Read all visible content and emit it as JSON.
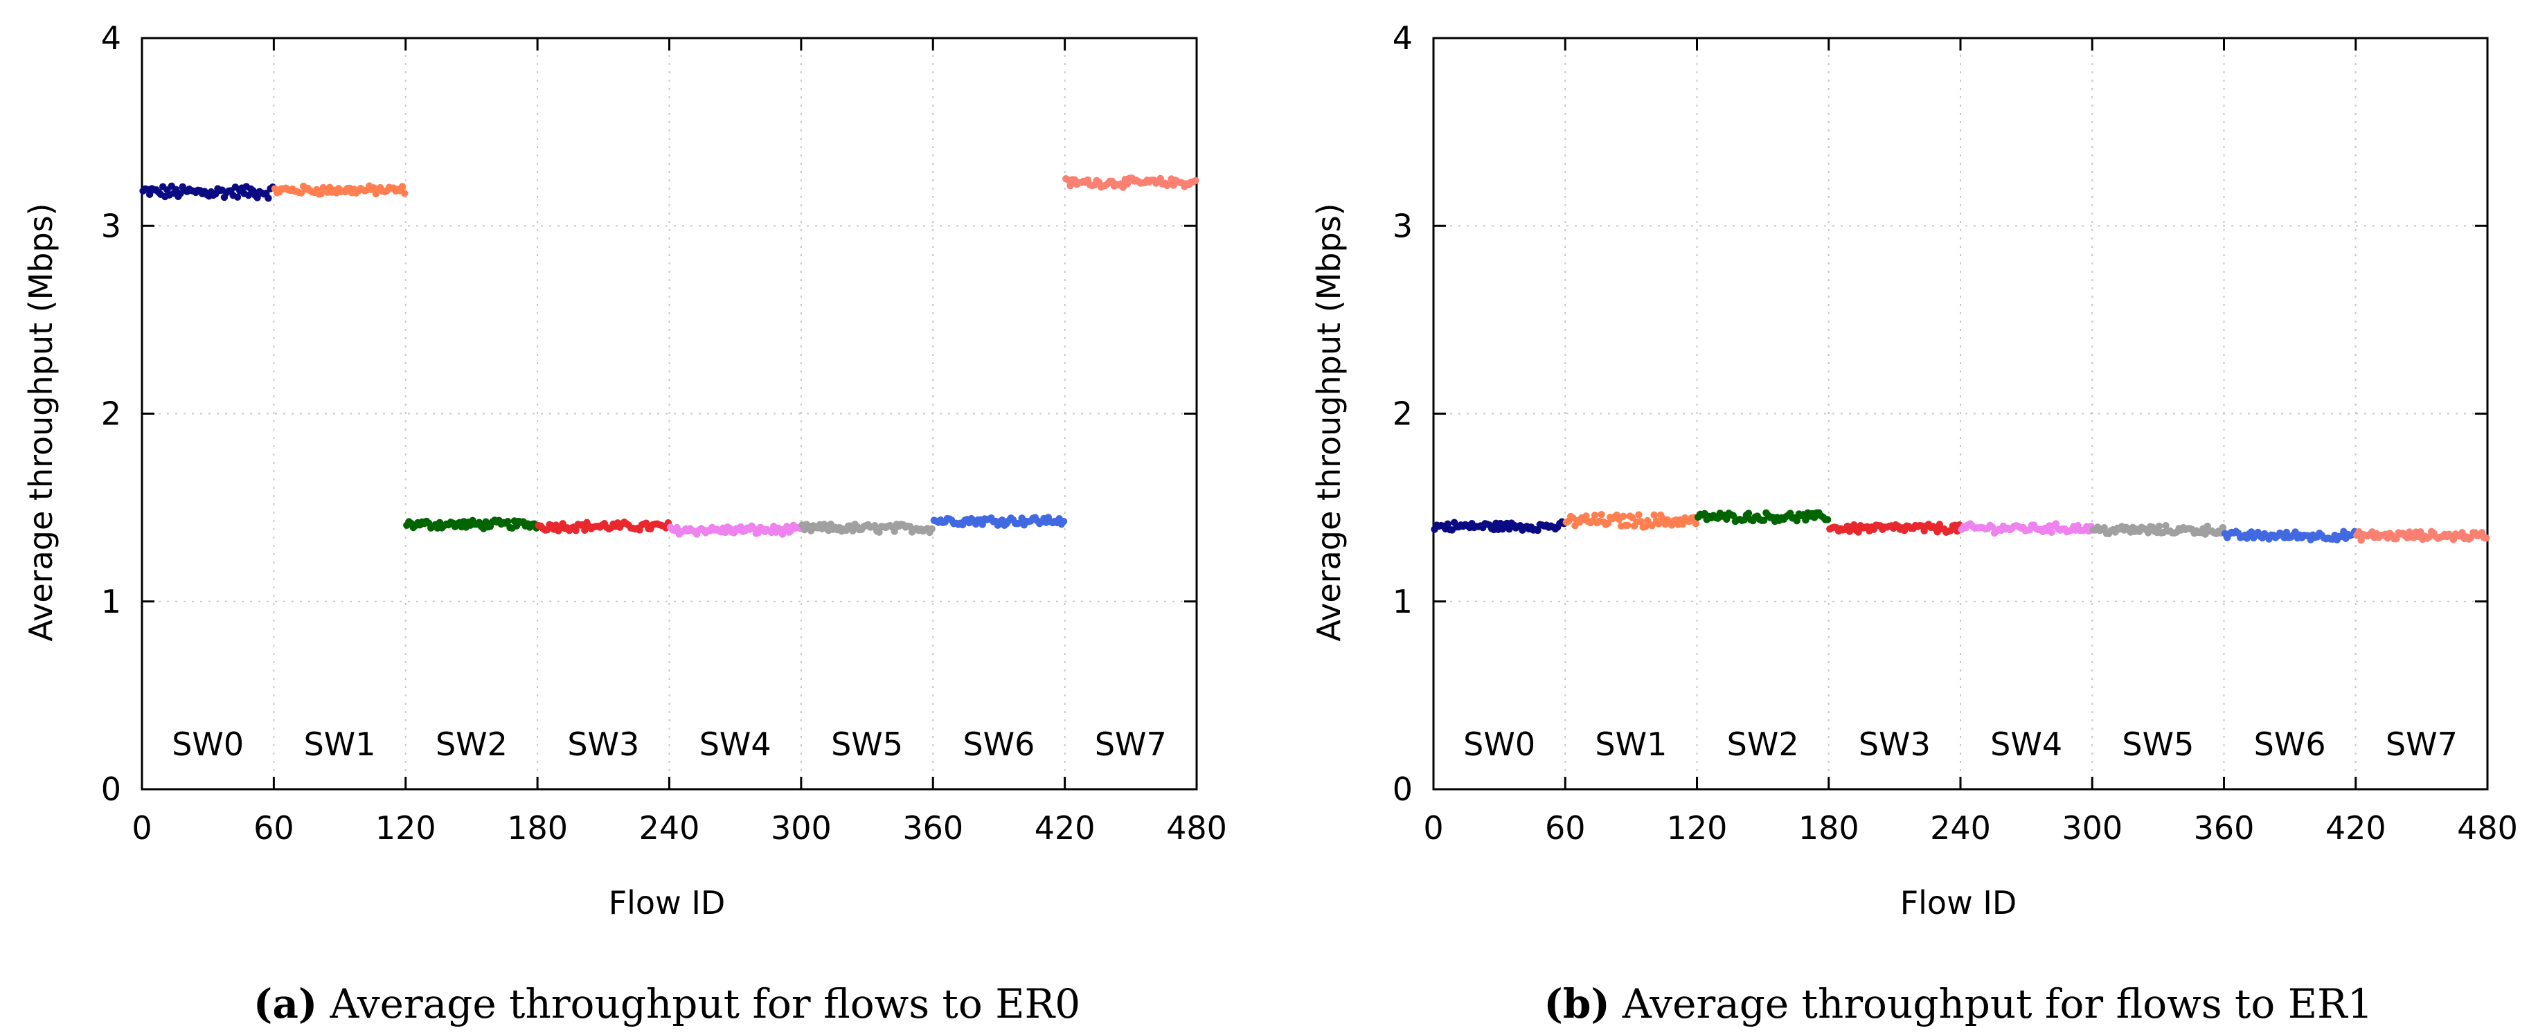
{
  "figure": {
    "panels": [
      {
        "id": "a",
        "caption_letter": "(a)",
        "caption_text": "Average throughput for flows to ER0"
      },
      {
        "id": "b",
        "caption_letter": "(b)",
        "caption_text": "Average throughput for flows to ER1"
      }
    ]
  },
  "chart_data": [
    {
      "type": "scatter",
      "title": "",
      "xlabel": "Flow ID",
      "ylabel": "Average throughput (Mbps)",
      "xlim": [
        0,
        480
      ],
      "ylim": [
        0,
        4
      ],
      "xticks": [
        0,
        60,
        120,
        180,
        240,
        300,
        360,
        420,
        480
      ],
      "yticks": [
        0,
        1,
        2,
        3,
        4
      ],
      "grid": true,
      "regions": [
        "SW0",
        "SW1",
        "SW2",
        "SW3",
        "SW4",
        "SW5",
        "SW6",
        "SW7"
      ],
      "series": [
        {
          "name": "SW0",
          "color": "#0a0a82",
          "x_range": [
            0,
            60
          ],
          "mean": 3.18,
          "jitter": 0.03
        },
        {
          "name": "SW1",
          "color": "#ff7f50",
          "x_range": [
            60,
            120
          ],
          "mean": 3.19,
          "jitter": 0.02
        },
        {
          "name": "SW2",
          "color": "#006400",
          "x_range": [
            120,
            180
          ],
          "mean": 1.41,
          "jitter": 0.02
        },
        {
          "name": "SW3",
          "color": "#e8282d",
          "x_range": [
            180,
            240
          ],
          "mean": 1.4,
          "jitter": 0.02
        },
        {
          "name": "SW4",
          "color": "#ee82ee",
          "x_range": [
            240,
            300
          ],
          "mean": 1.38,
          "jitter": 0.02
        },
        {
          "name": "SW5",
          "color": "#a0a0a0",
          "x_range": [
            300,
            360
          ],
          "mean": 1.39,
          "jitter": 0.02
        },
        {
          "name": "SW6",
          "color": "#4169e1",
          "x_range": [
            360,
            420
          ],
          "mean": 1.43,
          "jitter": 0.02
        },
        {
          "name": "SW7",
          "color": "#fa8072",
          "x_range": [
            420,
            480
          ],
          "mean": 3.23,
          "jitter": 0.02
        }
      ]
    },
    {
      "type": "scatter",
      "title": "",
      "xlabel": "Flow ID",
      "ylabel": "Average throughput (Mbps)",
      "xlim": [
        0,
        480
      ],
      "ylim": [
        0,
        4
      ],
      "xticks": [
        0,
        60,
        120,
        180,
        240,
        300,
        360,
        420,
        480
      ],
      "yticks": [
        0,
        1,
        2,
        3,
        4
      ],
      "grid": true,
      "regions": [
        "SW0",
        "SW1",
        "SW2",
        "SW3",
        "SW4",
        "SW5",
        "SW6",
        "SW7"
      ],
      "series": [
        {
          "name": "SW0",
          "color": "#0a0a82",
          "x_range": [
            0,
            60
          ],
          "mean": 1.4,
          "jitter": 0.02
        },
        {
          "name": "SW1",
          "color": "#ff7f50",
          "x_range": [
            60,
            120
          ],
          "mean": 1.43,
          "jitter": 0.03
        },
        {
          "name": "SW2",
          "color": "#006400",
          "x_range": [
            120,
            180
          ],
          "mean": 1.45,
          "jitter": 0.02
        },
        {
          "name": "SW3",
          "color": "#e8282d",
          "x_range": [
            180,
            240
          ],
          "mean": 1.39,
          "jitter": 0.02
        },
        {
          "name": "SW4",
          "color": "#ee82ee",
          "x_range": [
            240,
            300
          ],
          "mean": 1.39,
          "jitter": 0.02
        },
        {
          "name": "SW5",
          "color": "#a0a0a0",
          "x_range": [
            300,
            360
          ],
          "mean": 1.38,
          "jitter": 0.02
        },
        {
          "name": "SW6",
          "color": "#4169e1",
          "x_range": [
            360,
            420
          ],
          "mean": 1.35,
          "jitter": 0.02
        },
        {
          "name": "SW7",
          "color": "#fa8072",
          "x_range": [
            420,
            480
          ],
          "mean": 1.35,
          "jitter": 0.02
        }
      ]
    }
  ]
}
